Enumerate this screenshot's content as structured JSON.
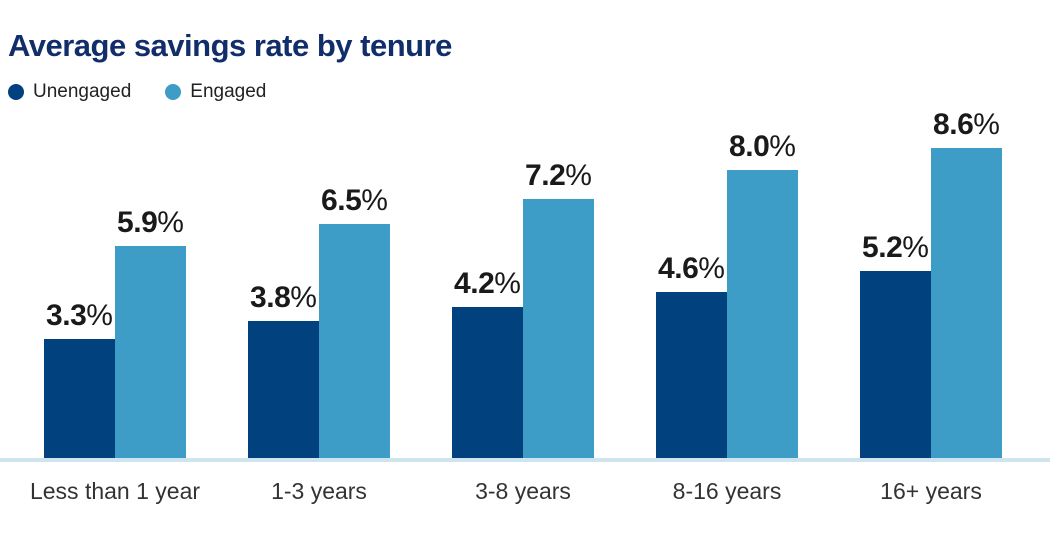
{
  "title": "Average savings rate by tenure",
  "legend": [
    {
      "label": "Unengaged",
      "color": "#00417e"
    },
    {
      "label": "Engaged",
      "color": "#3d9dc7"
    }
  ],
  "chart_data": {
    "type": "bar",
    "title": "Average savings rate by tenure",
    "categories": [
      "Less than 1 year",
      "1-3 years",
      "3-8 years",
      "8-16 years",
      "16+ years"
    ],
    "series": [
      {
        "name": "Unengaged",
        "color": "#00417e",
        "values": [
          3.3,
          3.8,
          4.2,
          4.6,
          5.2
        ]
      },
      {
        "name": "Engaged",
        "color": "#3d9dc7",
        "values": [
          5.9,
          6.5,
          7.2,
          8.0,
          8.6
        ]
      }
    ],
    "value_suffix": "%",
    "data_labels": true,
    "xlabel": "",
    "ylabel": "",
    "ylim": [
      0,
      9
    ],
    "grid": false,
    "legend_position": "top-left"
  },
  "colors": {
    "title_text": "#112e6b",
    "axis_line": "#cee4ef",
    "value_text": "#1a1a1a",
    "category_text": "#333333"
  }
}
